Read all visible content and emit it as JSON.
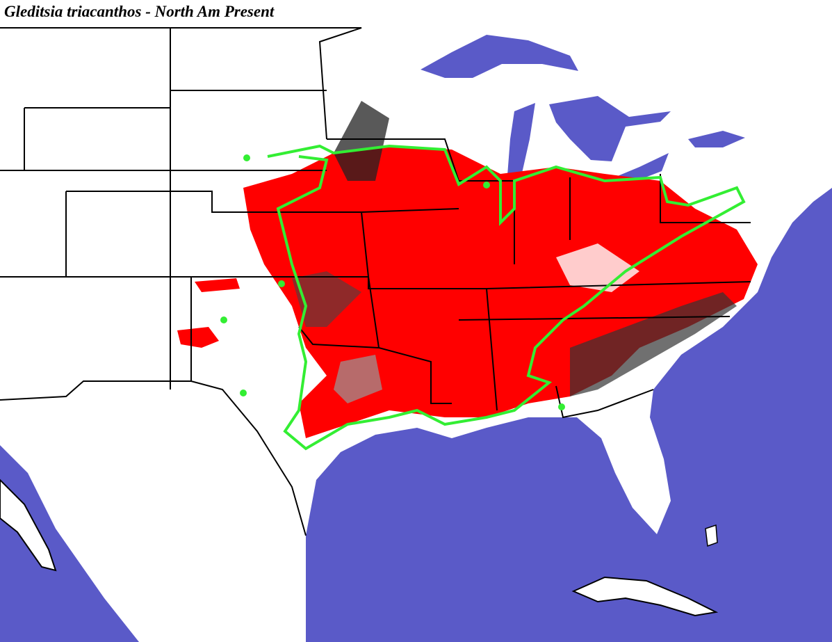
{
  "title": "Gleditsia triacanthos - North Am Present"
}
